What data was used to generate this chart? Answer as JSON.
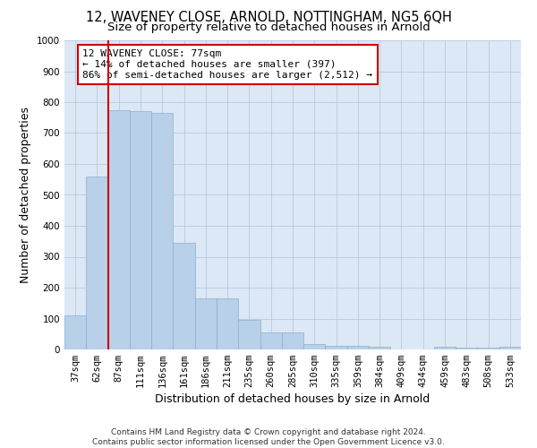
{
  "title_line1": "12, WAVENEY CLOSE, ARNOLD, NOTTINGHAM, NG5 6QH",
  "title_line2": "Size of property relative to detached houses in Arnold",
  "xlabel": "Distribution of detached houses by size in Arnold",
  "ylabel": "Number of detached properties",
  "footer_line1": "Contains HM Land Registry data © Crown copyright and database right 2024.",
  "footer_line2": "Contains public sector information licensed under the Open Government Licence v3.0.",
  "categories": [
    "37sqm",
    "62sqm",
    "87sqm",
    "111sqm",
    "136sqm",
    "161sqm",
    "186sqm",
    "211sqm",
    "235sqm",
    "260sqm",
    "285sqm",
    "310sqm",
    "335sqm",
    "359sqm",
    "384sqm",
    "409sqm",
    "434sqm",
    "459sqm",
    "483sqm",
    "508sqm",
    "533sqm"
  ],
  "values": [
    110,
    560,
    775,
    770,
    765,
    345,
    165,
    165,
    97,
    55,
    55,
    18,
    13,
    13,
    8,
    0,
    0,
    10,
    5,
    5,
    10
  ],
  "bar_color": "#b8d0e8",
  "bar_edge_color": "#8ab0d0",
  "vline_x": 1.5,
  "vline_color": "#cc0000",
  "annotation_text": "12 WAVENEY CLOSE: 77sqm\n← 14% of detached houses are smaller (397)\n86% of semi-detached houses are larger (2,512) →",
  "annotation_box_color": "#ffffff",
  "annotation_box_edge": "#cc0000",
  "ylim": [
    0,
    1000
  ],
  "yticks": [
    0,
    100,
    200,
    300,
    400,
    500,
    600,
    700,
    800,
    900,
    1000
  ],
  "bg_color": "#ffffff",
  "plot_bg_color": "#dce8f5",
  "grid_color": "#b0c4d8",
  "title_fontsize": 10.5,
  "subtitle_fontsize": 9.5,
  "axis_label_fontsize": 9,
  "tick_fontsize": 7.5,
  "footer_fontsize": 6.5
}
